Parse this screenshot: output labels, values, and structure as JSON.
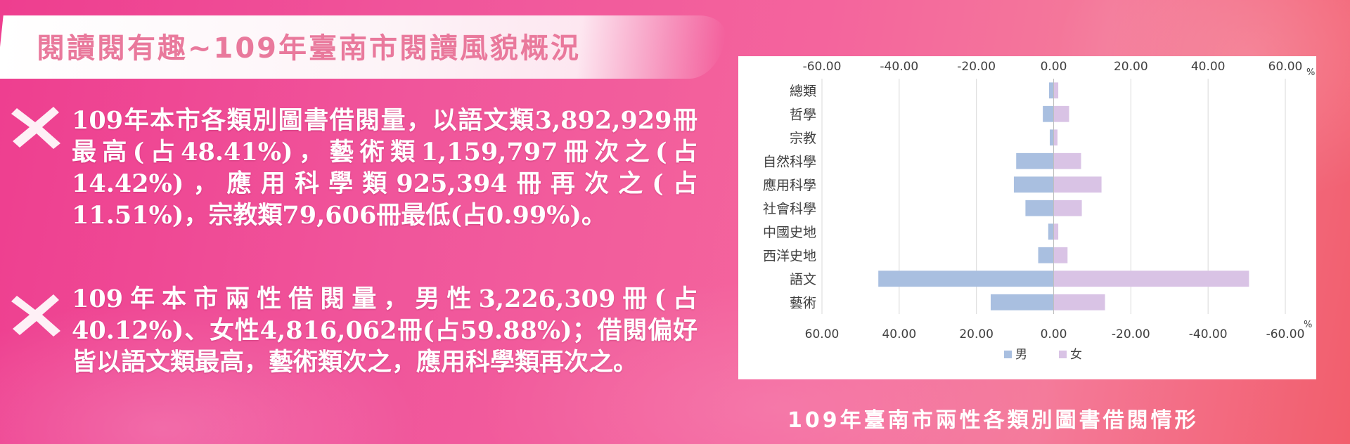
{
  "header": {
    "title": "閱讀閱有趣~109年臺南市閱讀風貌概況"
  },
  "main": {
    "paragraphs": [
      "109年本市各類別圖書借閱量，以語文類3,892,929冊最高(占48.41%)，藝術類1,159,797冊次之(占14.42%)，應用科學類925,394冊再次之(占11.51%)，宗教類79,606冊最低(占0.99%)。",
      "109年本市兩性借閱量，男性3,226,309冊(占40.12%)、女性4,816,062冊(占59.88%)；借閱偏好皆以語文類最高，藝術類次之，應用科學類再次之。"
    ]
  },
  "chart_caption": "109年臺南市兩性各類別圖書借閱情形",
  "colors": {
    "male": "#a9bfe0",
    "female": "#d9c3e5",
    "title_pink": "#e9799c",
    "grid": "#d9d9d9"
  },
  "chart_data": {
    "type": "bar",
    "orientation": "horizontal",
    "layout": "population-pyramid",
    "categories": [
      "總類",
      "哲學",
      "宗教",
      "自然科學",
      "應用科學",
      "社會科學",
      "中國史地",
      "西洋史地",
      "語文",
      "藝術"
    ],
    "series": [
      {
        "name": "男",
        "values": [
          1.2,
          2.8,
          1.0,
          9.7,
          10.3,
          7.3,
          1.4,
          4.0,
          45.4,
          16.3
        ]
      },
      {
        "name": "女",
        "values": [
          1.2,
          4.0,
          1.0,
          7.1,
          12.4,
          7.3,
          1.2,
          3.6,
          50.6,
          13.3
        ]
      }
    ],
    "top_axis_ticks": [
      "-60.00",
      "-40.00",
      "-20.00",
      "0.00",
      "20.00",
      "40.00",
      "60.00"
    ],
    "bottom_axis_ticks": [
      "60.00",
      "40.00",
      "20.00",
      "0.00",
      "-20.00",
      "-40.00",
      "-60.00"
    ],
    "axis_unit": "%",
    "xlim": [
      -60,
      60
    ],
    "grid": true,
    "legend": [
      "男",
      "女"
    ],
    "legend_position": "bottom"
  }
}
